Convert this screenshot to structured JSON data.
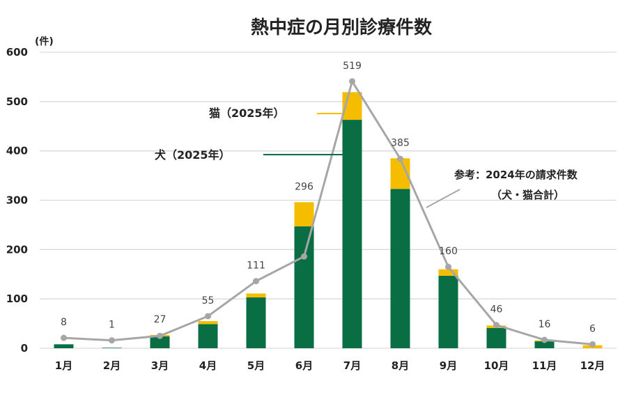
{
  "chart_data": {
    "type": "bar",
    "title": "熱中症の月別診療件数",
    "unit_label": "(件)",
    "xlabel": "",
    "ylabel": "",
    "ylim": [
      0,
      600
    ],
    "yticks": [
      0,
      100,
      200,
      300,
      400,
      500,
      600
    ],
    "grid": true,
    "categories": [
      "1月",
      "2月",
      "3月",
      "4月",
      "5月",
      "6月",
      "7月",
      "8月",
      "9月",
      "10月",
      "11月",
      "12月"
    ],
    "series": [
      {
        "name": "犬（2025年）",
        "type": "stacked-bar",
        "color": "#0a6e45",
        "values": [
          8,
          1,
          24,
          49,
          103,
          247,
          463,
          323,
          147,
          41,
          14,
          0
        ]
      },
      {
        "name": "猫（2025年）",
        "type": "stacked-bar",
        "color": "#f5bd00",
        "values": [
          0,
          0,
          3,
          6,
          8,
          49,
          56,
          62,
          13,
          5,
          2,
          6
        ]
      },
      {
        "name": "参考：2024年の請求件数",
        "name2": "（犬・猫合計）",
        "type": "line",
        "color": "#a6a6a6",
        "values": [
          21,
          16,
          25,
          65,
          136,
          186,
          541,
          384,
          165,
          47,
          17,
          8
        ]
      }
    ],
    "totals": [
      8,
      1,
      27,
      55,
      111,
      296,
      519,
      385,
      160,
      46,
      16,
      6
    ]
  }
}
